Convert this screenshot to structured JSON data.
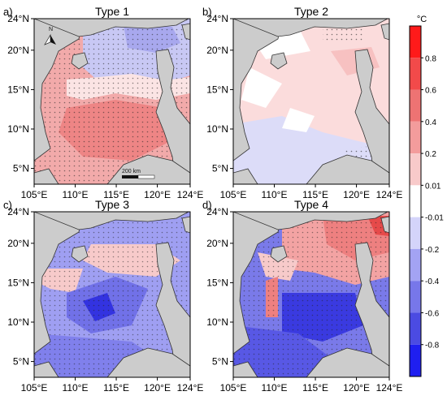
{
  "panels": [
    {
      "id": "a",
      "letter": "a)",
      "title": "Type 1",
      "scale_label": "200 km",
      "north_label": "N"
    },
    {
      "id": "b",
      "letter": "b)",
      "title": "Type 2"
    },
    {
      "id": "c",
      "letter": "c)",
      "title": "Type 3"
    },
    {
      "id": "d",
      "letter": "d)",
      "title": "Type 4"
    }
  ],
  "axes": {
    "lon_ticks": [
      "105°E",
      "110°E",
      "115°E",
      "120°E",
      "124°E"
    ],
    "lat_ticks": [
      "24°N",
      "20°N",
      "15°N",
      "10°N",
      "5°N"
    ],
    "lon_values": [
      105,
      110,
      115,
      120,
      124
    ],
    "lat_values": [
      24,
      20,
      15,
      10,
      5
    ]
  },
  "colorbar": {
    "unit": "°C",
    "tick_labels": [
      "0.8",
      "0.6",
      "0.4",
      "0.2",
      "0.01",
      "-0.01",
      "-0.2",
      "-0.4",
      "-0.6",
      "-0.8"
    ],
    "colors": [
      "#ff1a1a",
      "#f24a4a",
      "#ee7373",
      "#f39c9c",
      "#f8caca",
      "#ffffff",
      "#d4d4fa",
      "#a3a3f3",
      "#7777ea",
      "#4b4be2",
      "#1f1ff0"
    ]
  },
  "fields": {
    "a": {
      "base": "#f2aaaa",
      "warm": "#ee8585",
      "cool": "#c8c8f4",
      "land": "#cccccc"
    },
    "b": {
      "base": "#fbdcdc",
      "warm": "#f7c1c1",
      "cool": "#dcdcf8",
      "land": "#cccccc"
    },
    "c": {
      "base": "#9f9ff2",
      "warm": "#f7caca",
      "cool": "#7171e8",
      "deep": "#3333e0",
      "land": "#cccccc"
    },
    "d": {
      "base": "#7a7ae9",
      "warm": "#ee8080",
      "cool": "#5858e5",
      "deep": "#3a3ae0",
      "land": "#cccccc"
    }
  }
}
